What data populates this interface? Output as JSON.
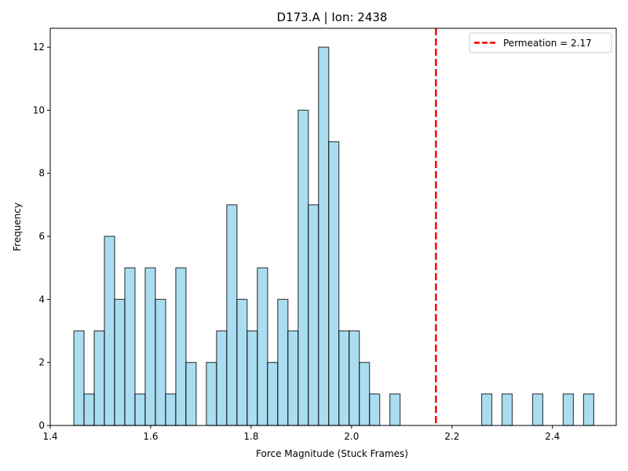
{
  "chart_data": {
    "type": "bar",
    "subtype": "histogram",
    "title": "D173.A | Ion: 2438",
    "xlabel": "Force Magnitude (Stuck Frames)",
    "ylabel": "Frequency",
    "xlim": [
      1.4,
      2.527
    ],
    "ylim": [
      0,
      12.6
    ],
    "xticks": [
      "1.4",
      "1.6",
      "1.8",
      "2.0",
      "2.2",
      "2.4"
    ],
    "xtick_values": [
      1.4,
      1.6,
      1.8,
      2.0,
      2.2,
      2.4
    ],
    "yticks": [
      "0",
      "2",
      "4",
      "6",
      "8",
      "10",
      "12"
    ],
    "ytick_values": [
      0,
      2,
      4,
      6,
      8,
      10,
      12
    ],
    "bin_start": 1.447,
    "bin_width": 0.0203,
    "counts": [
      3,
      1,
      3,
      6,
      4,
      5,
      1,
      5,
      4,
      1,
      5,
      2,
      0,
      2,
      3,
      7,
      4,
      3,
      5,
      2,
      4,
      3,
      10,
      7,
      12,
      9,
      3,
      3,
      2,
      1,
      0,
      1,
      0,
      0,
      0,
      0,
      0,
      0,
      0,
      0,
      1,
      0,
      1,
      0,
      0,
      1,
      0,
      0,
      1,
      0,
      1
    ],
    "bar_color": "#87CEEB",
    "bar_edge_color": "#000000",
    "reference_line": {
      "x": 2.168,
      "label": "Permeation = 2.17",
      "color": "#ff0000",
      "style": "dashed"
    },
    "legend_position": "upper right",
    "grid": false
  }
}
